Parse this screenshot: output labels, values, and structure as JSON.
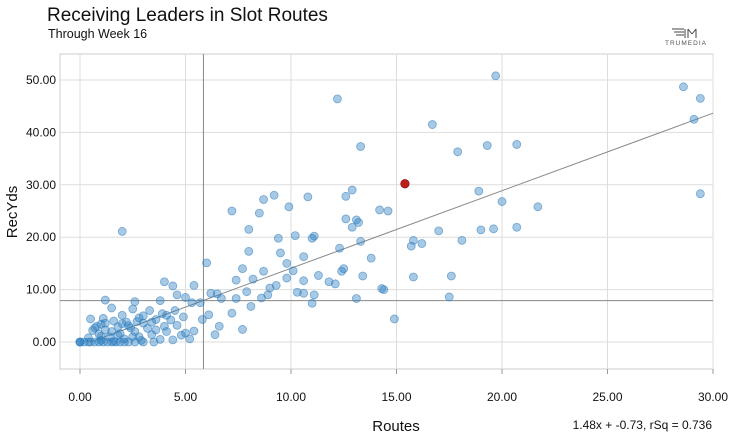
{
  "header": {
    "title": "Receiving Leaders in Slot Routes",
    "subtitle": "Through Week 16",
    "logo_text": "TRUMEDIA"
  },
  "footer": {
    "regression": "1.48x + -0.73, rSq = 0.736"
  },
  "colors": {
    "point": "#2e7fbf",
    "highlight": "#c0201c",
    "grid": "#dddddd",
    "reference": "#888888"
  },
  "chart_data": {
    "type": "scatter",
    "title": "Receiving Leaders in Slot Routes",
    "subtitle": "Through Week 16",
    "xlabel": "Routes",
    "ylabel": "RecYds",
    "xlim": [
      -0.5,
      30
    ],
    "ylim": [
      -5,
      55
    ],
    "x_ticks": [
      "0.00",
      "5.00",
      "10.00",
      "15.00",
      "20.00",
      "25.00",
      "30.00"
    ],
    "y_ticks": [
      "0.00",
      "10.00",
      "20.00",
      "30.00",
      "40.00",
      "50.00"
    ],
    "grid": true,
    "reference_lines": {
      "x_mean": 5.85,
      "y_mean": 7.9
    },
    "trendline": {
      "slope": 1.48,
      "intercept": -0.73,
      "r_squared": 0.736
    },
    "highlight": [
      15.4,
      30.2
    ],
    "points": [
      [
        19.7,
        50.8
      ],
      [
        28.6,
        48.7
      ],
      [
        29.4,
        46.5
      ],
      [
        12.2,
        46.4
      ],
      [
        29.1,
        42.5
      ],
      [
        16.7,
        41.5
      ],
      [
        13.3,
        37.3
      ],
      [
        19.3,
        37.5
      ],
      [
        20.7,
        37.7
      ],
      [
        17.9,
        36.3
      ],
      [
        29.4,
        28.3
      ],
      [
        12.9,
        29.0
      ],
      [
        18.9,
        28.8
      ],
      [
        9.2,
        28.0
      ],
      [
        10.8,
        27.7
      ],
      [
        12.6,
        27.8
      ],
      [
        8.7,
        27.2
      ],
      [
        20.0,
        26.8
      ],
      [
        9.9,
        25.8
      ],
      [
        21.7,
        25.8
      ],
      [
        7.2,
        25.0
      ],
      [
        8.5,
        24.6
      ],
      [
        14.2,
        25.2
      ],
      [
        14.6,
        25.0
      ],
      [
        12.6,
        23.5
      ],
      [
        13.1,
        23.3
      ],
      [
        13.2,
        22.8
      ],
      [
        12.9,
        21.9
      ],
      [
        20.7,
        21.9
      ],
      [
        17.0,
        21.2
      ],
      [
        19.0,
        21.4
      ],
      [
        19.6,
        21.6
      ],
      [
        8.0,
        21.5
      ],
      [
        2.0,
        21.1
      ],
      [
        10.2,
        20.3
      ],
      [
        11.1,
        20.2
      ],
      [
        11.0,
        19.8
      ],
      [
        9.4,
        19.8
      ],
      [
        13.3,
        19.2
      ],
      [
        18.1,
        19.4
      ],
      [
        16.2,
        18.8
      ],
      [
        15.7,
        18.3
      ],
      [
        15.8,
        19.4
      ],
      [
        12.3,
        17.9
      ],
      [
        8.0,
        17.3
      ],
      [
        9.5,
        17.0
      ],
      [
        10.6,
        16.3
      ],
      [
        13.8,
        16.0
      ],
      [
        6.0,
        15.1
      ],
      [
        9.8,
        15.0
      ],
      [
        12.5,
        14.0
      ],
      [
        8.7,
        13.5
      ],
      [
        10.1,
        13.6
      ],
      [
        7.7,
        14.0
      ],
      [
        12.4,
        13.5
      ],
      [
        11.3,
        12.7
      ],
      [
        13.4,
        12.6
      ],
      [
        17.6,
        12.6
      ],
      [
        15.8,
        12.4
      ],
      [
        7.4,
        11.8
      ],
      [
        8.2,
        12.0
      ],
      [
        9.8,
        12.2
      ],
      [
        10.6,
        11.7
      ],
      [
        4.0,
        11.5
      ],
      [
        11.8,
        11.5
      ],
      [
        4.4,
        10.7
      ],
      [
        12.1,
        11.1
      ],
      [
        9.3,
        10.8
      ],
      [
        5.4,
        10.8
      ],
      [
        9.0,
        10.3
      ],
      [
        14.3,
        10.2
      ],
      [
        10.3,
        9.5
      ],
      [
        6.5,
        9.2
      ],
      [
        14.4,
        10.0
      ],
      [
        6.2,
        9.3
      ],
      [
        4.6,
        9.0
      ],
      [
        7.9,
        9.6
      ],
      [
        5.0,
        8.5
      ],
      [
        8.9,
        9.0
      ],
      [
        10.6,
        9.3
      ],
      [
        11.1,
        9.0
      ],
      [
        13.1,
        8.3
      ],
      [
        17.5,
        8.6
      ],
      [
        7.4,
        8.3
      ],
      [
        8.6,
        8.4
      ],
      [
        2.6,
        7.7
      ],
      [
        3.8,
        7.9
      ],
      [
        5.3,
        7.5
      ],
      [
        5.7,
        7.5
      ],
      [
        1.2,
        8.0
      ],
      [
        6.7,
        8.3
      ],
      [
        11.0,
        7.4
      ],
      [
        8.1,
        6.8
      ],
      [
        2.5,
        6.3
      ],
      [
        4.5,
        6.0
      ],
      [
        1.5,
        6.5
      ],
      [
        3.3,
        6.0
      ],
      [
        7.2,
        5.5
      ],
      [
        3.9,
        5.4
      ],
      [
        6.1,
        5.2
      ],
      [
        2.0,
        5.1
      ],
      [
        4.1,
        5.1
      ],
      [
        1.1,
        4.5
      ],
      [
        2.8,
        4.6
      ],
      [
        0.5,
        4.4
      ],
      [
        3.6,
        4.3
      ],
      [
        5.8,
        4.3
      ],
      [
        1.6,
        4.0
      ],
      [
        4.3,
        4.2
      ],
      [
        14.9,
        4.4
      ],
      [
        2.2,
        3.8
      ],
      [
        3.0,
        3.6
      ],
      [
        1.0,
        3.4
      ],
      [
        4.6,
        3.2
      ],
      [
        6.6,
        3.0
      ],
      [
        2.3,
        3.1
      ],
      [
        0.8,
        3.0
      ],
      [
        1.8,
        2.9
      ],
      [
        7.7,
        2.4
      ],
      [
        3.2,
        2.6
      ],
      [
        0.6,
        2.2
      ],
      [
        1.2,
        2.3
      ],
      [
        2.6,
        2.0
      ],
      [
        4.1,
        2.0
      ],
      [
        5.4,
        2.1
      ],
      [
        6.4,
        1.4
      ],
      [
        0.9,
        1.5
      ],
      [
        1.9,
        1.6
      ],
      [
        3.4,
        1.4
      ],
      [
        4.8,
        1.3
      ],
      [
        1.4,
        1.0
      ],
      [
        2.8,
        1.0
      ],
      [
        0.4,
        0.8
      ],
      [
        2.1,
        0.6
      ],
      [
        3.8,
        0.5
      ],
      [
        5.2,
        0.6
      ],
      [
        1.0,
        0.3
      ],
      [
        1.6,
        0.1
      ],
      [
        0.5,
        0.0
      ],
      [
        0.7,
        0.0
      ],
      [
        0.9,
        0.0
      ],
      [
        1.1,
        0.0
      ],
      [
        1.3,
        0.0
      ],
      [
        1.5,
        0.0
      ],
      [
        1.7,
        0.0
      ],
      [
        1.9,
        0.0
      ],
      [
        2.1,
        0.0
      ],
      [
        2.3,
        0.0
      ],
      [
        2.6,
        0.0
      ],
      [
        3.0,
        0.0
      ],
      [
        3.5,
        0.0
      ],
      [
        0.0,
        0.0
      ],
      [
        0.0,
        0.0
      ],
      [
        0.0,
        0.0
      ],
      [
        0.2,
        0.0
      ],
      [
        0.4,
        0.0
      ],
      [
        1.2,
        3.6
      ],
      [
        2.4,
        2.7
      ],
      [
        1.0,
        1.1
      ],
      [
        0.7,
        2.7
      ],
      [
        3.0,
        5.0
      ],
      [
        2.0,
        3.5
      ],
      [
        1.5,
        2.0
      ],
      [
        2.5,
        1.0
      ],
      [
        4.0,
        3.0
      ],
      [
        3.4,
        3.8
      ],
      [
        4.9,
        4.8
      ],
      [
        5.0,
        1.7
      ],
      [
        2.9,
        0.3
      ],
      [
        1.8,
        1.3
      ],
      [
        3.6,
        2.3
      ],
      [
        4.4,
        0.4
      ],
      [
        2.7,
        3.9
      ]
    ]
  }
}
